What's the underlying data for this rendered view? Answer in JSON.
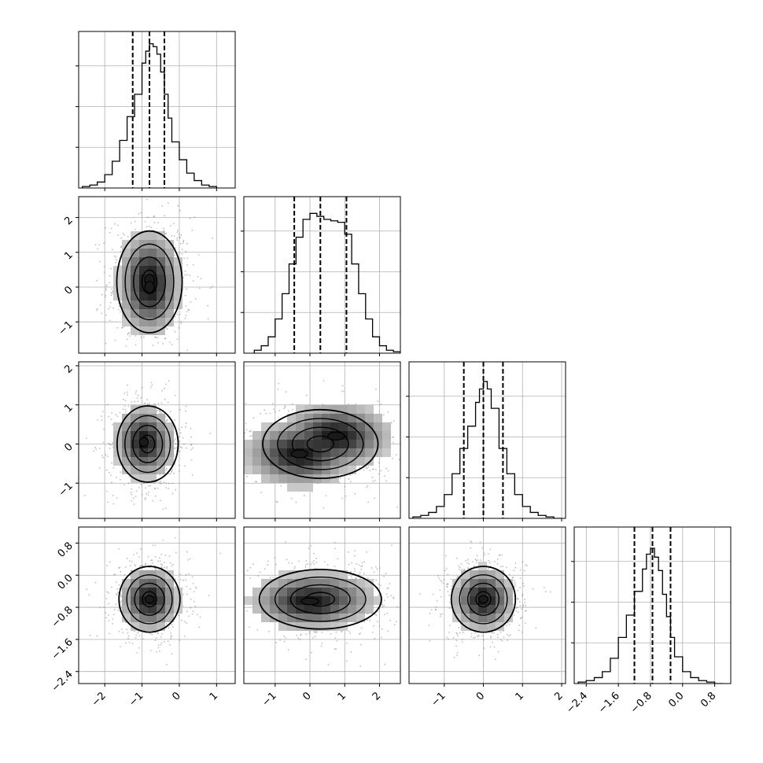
{
  "chart_data": {
    "type": "corner",
    "variables": 4,
    "axes": [
      {
        "range": [
          -2.7,
          1.5
        ],
        "ticks": [
          -2,
          -1,
          0,
          1
        ],
        "tick_labels": [
          "−2",
          "−1",
          "0",
          "1"
        ],
        "hist_ymax": 1.0,
        "hist_gridlines": [
          0.26,
          0.52,
          0.78
        ]
      },
      {
        "range": [
          -1.9,
          2.6
        ],
        "ticks": [
          -1,
          0,
          1,
          2
        ],
        "tick_labels": [
          "−1",
          "0",
          "1",
          "2"
        ],
        "hist_ymax": 1.0,
        "hist_gridlines": [
          0.26,
          0.52,
          0.78
        ]
      },
      {
        "range": [
          -1.9,
          2.1
        ],
        "ticks": [
          -1,
          0,
          1,
          2
        ],
        "tick_labels": [
          "−1",
          "0",
          "1",
          "2"
        ],
        "hist_ymax": 1.0,
        "hist_gridlines": [
          0.26,
          0.52,
          0.78
        ]
      },
      {
        "range": [
          -2.7,
          1.2
        ],
        "ticks": [
          -2.4,
          -1.6,
          -0.8,
          0.0,
          0.8
        ],
        "tick_labels": [
          "−2.4",
          "−1.6",
          "−0.8",
          "0.0",
          "0.8"
        ],
        "hist_ymax": 1.0,
        "hist_gridlines": [
          0.26,
          0.52,
          0.78
        ]
      }
    ],
    "histograms": [
      {
        "bins": [
          -2.6,
          -2.4,
          -2.2,
          -2.0,
          -1.8,
          -1.6,
          -1.4,
          -1.2,
          -1.0,
          -0.9,
          -0.8,
          -0.7,
          -0.6,
          -0.5,
          -0.4,
          -0.3,
          -0.2,
          0.0,
          0.2,
          0.4,
          0.6,
          0.8,
          1.0
        ],
        "counts": [
          0.01,
          0.02,
          0.04,
          0.09,
          0.18,
          0.32,
          0.48,
          0.63,
          0.84,
          0.92,
          0.97,
          0.95,
          0.9,
          0.78,
          0.63,
          0.47,
          0.31,
          0.19,
          0.1,
          0.05,
          0.02,
          0.01
        ],
        "quantiles": [
          -1.25,
          -0.8,
          -0.4
        ]
      },
      {
        "bins": [
          -1.6,
          -1.4,
          -1.2,
          -1.0,
          -0.8,
          -0.6,
          -0.4,
          -0.2,
          0.0,
          0.2,
          0.4,
          0.6,
          0.8,
          1.0,
          1.2,
          1.4,
          1.6,
          1.8,
          2.0,
          2.2,
          2.4,
          2.6
        ],
        "counts": [
          0.02,
          0.05,
          0.11,
          0.23,
          0.4,
          0.6,
          0.78,
          0.9,
          0.94,
          0.92,
          0.9,
          0.89,
          0.88,
          0.8,
          0.6,
          0.4,
          0.23,
          0.11,
          0.05,
          0.02,
          0.01
        ],
        "quantiles": [
          -0.45,
          0.3,
          1.05
        ]
      },
      {
        "bins": [
          -1.8,
          -1.6,
          -1.4,
          -1.2,
          -1.0,
          -0.8,
          -0.6,
          -0.4,
          -0.2,
          -0.1,
          0.0,
          0.1,
          0.2,
          0.4,
          0.6,
          0.8,
          1.0,
          1.2,
          1.4,
          1.6,
          1.8,
          2.0
        ],
        "counts": [
          0.01,
          0.02,
          0.04,
          0.08,
          0.16,
          0.3,
          0.47,
          0.62,
          0.78,
          0.87,
          0.92,
          0.87,
          0.74,
          0.47,
          0.3,
          0.16,
          0.08,
          0.04,
          0.02,
          0.01,
          0.0
        ],
        "quantiles": [
          -0.5,
          0.0,
          0.5
        ]
      },
      {
        "bins": [
          -2.6,
          -2.4,
          -2.2,
          -2.0,
          -1.8,
          -1.6,
          -1.4,
          -1.2,
          -1.0,
          -0.9,
          -0.8,
          -0.7,
          -0.6,
          -0.5,
          -0.4,
          -0.3,
          -0.2,
          0.0,
          0.2,
          0.4,
          0.6,
          0.8,
          1.0
        ],
        "counts": [
          0.01,
          0.02,
          0.04,
          0.08,
          0.17,
          0.31,
          0.46,
          0.62,
          0.77,
          0.87,
          0.91,
          0.85,
          0.76,
          0.6,
          0.45,
          0.31,
          0.18,
          0.08,
          0.04,
          0.02,
          0.01,
          0.0
        ],
        "quantiles": [
          -1.2,
          -0.75,
          -0.3
        ]
      }
    ],
    "pairs": [
      {
        "row": 1,
        "col": 0,
        "center": [
          -0.8,
          0.15
        ],
        "spread": [
          0.45,
          0.75
        ],
        "peaks": [
          [
            -0.8,
            0.2
          ],
          [
            -0.8,
            0.0
          ]
        ],
        "levels": [
          "high",
          "mid",
          "low",
          "outer"
        ]
      },
      {
        "row": 2,
        "col": 0,
        "center": [
          -0.85,
          0.0
        ],
        "spread": [
          0.42,
          0.5
        ],
        "peaks": [
          [
            -0.95,
            0.05
          ]
        ],
        "levels": [
          "high",
          "mid",
          "low",
          "outer"
        ]
      },
      {
        "row": 2,
        "col": 1,
        "center": [
          0.3,
          0.0
        ],
        "spread": [
          0.85,
          0.45
        ],
        "peaks": [
          [
            -0.3,
            -0.25
          ],
          [
            0.75,
            0.2
          ]
        ],
        "levels": [
          "high",
          "mid",
          "low",
          "outer"
        ]
      },
      {
        "row": 3,
        "col": 0,
        "center": [
          -0.8,
          -0.6
        ],
        "spread": [
          0.42,
          0.42
        ],
        "peaks": [
          [
            -0.8,
            -0.6
          ]
        ],
        "levels": [
          "high",
          "mid",
          "low",
          "outer"
        ]
      },
      {
        "row": 3,
        "col": 1,
        "center": [
          0.3,
          -0.6
        ],
        "spread": [
          0.9,
          0.38
        ],
        "peaks": [
          [
            0.0,
            -0.65
          ]
        ],
        "levels": [
          "high",
          "mid",
          "low",
          "outer"
        ]
      },
      {
        "row": 3,
        "col": 2,
        "center": [
          0.0,
          -0.6
        ],
        "spread": [
          0.42,
          0.42
        ],
        "peaks": [
          [
            0.0,
            -0.6
          ]
        ],
        "levels": [
          "high",
          "mid",
          "low",
          "outer"
        ]
      }
    ],
    "colors": {
      "line": "#000000",
      "grid": "#b0b0b0",
      "points": "#6e6e6e",
      "density_dark": "#1a1a1a"
    },
    "grid": true,
    "title": "",
    "legend": null
  }
}
